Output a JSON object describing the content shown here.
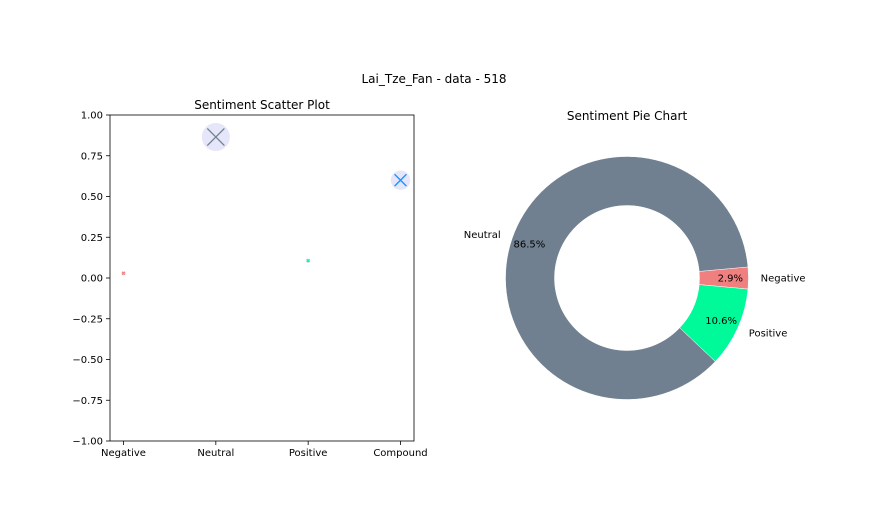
{
  "figure": {
    "suptitle": "Lai_Tze_Fan - data - 518"
  },
  "chart_data": [
    {
      "type": "scatter",
      "title": "Sentiment Scatter Plot",
      "xlabel": "",
      "ylabel": "",
      "categories": [
        "Negative",
        "Neutral",
        "Positive",
        "Compound"
      ],
      "values": [
        0.029,
        0.865,
        0.106,
        0.6
      ],
      "marker_colors": [
        "#f08080",
        "#708090",
        "#00fa9a",
        "#1e90ff"
      ],
      "halo_color": "#e6e6fa",
      "ylim": [
        -1.0,
        1.0
      ],
      "yticks": [
        1.0,
        0.75,
        0.5,
        0.25,
        0.0,
        -0.25,
        -0.5,
        -0.75,
        -1.0
      ],
      "ytick_labels": [
        "1.00",
        "0.75",
        "0.50",
        "0.25",
        "0.00",
        "−0.25",
        "−0.50",
        "−0.75",
        "−1.00"
      ],
      "grid": false
    },
    {
      "type": "pie",
      "title": "Sentiment Pie Chart",
      "labels": [
        "Negative",
        "Neutral",
        "Positive"
      ],
      "values": [
        2.9,
        86.5,
        10.6
      ],
      "percent_labels": [
        "2.9%",
        "86.5%",
        "10.6%"
      ],
      "colors": [
        "#f08080",
        "#708090",
        "#00fa9a"
      ],
      "donut": true
    }
  ]
}
